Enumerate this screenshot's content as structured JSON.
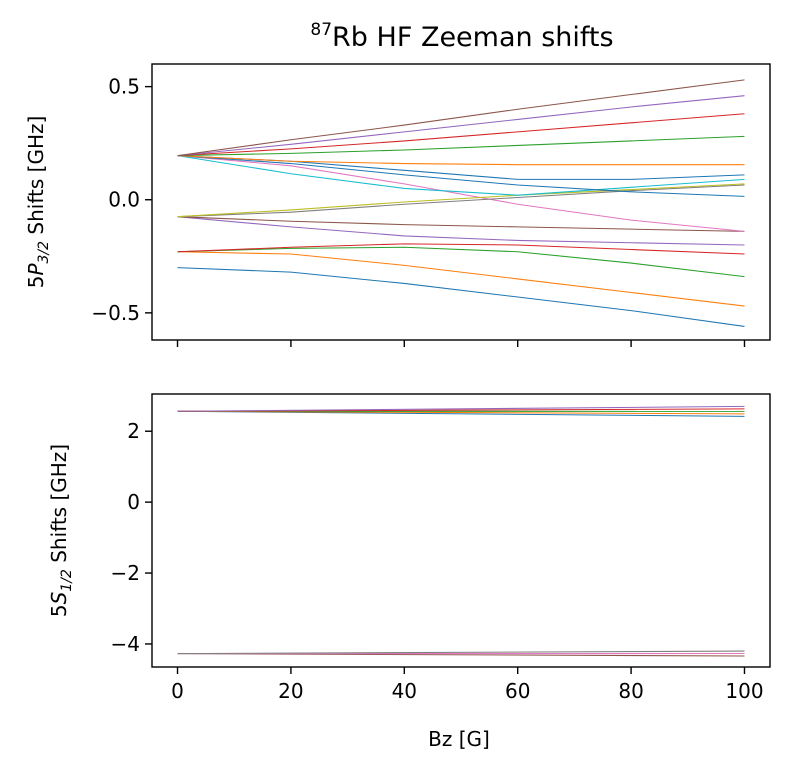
{
  "figure": {
    "title_sup": "87",
    "title_main": "Rb HF Zeeman shifts"
  },
  "chart_data": [
    {
      "type": "line",
      "panel": "top",
      "ylabel_prefix": "5",
      "ylabel_symbol": "P",
      "ylabel_sub": "3/2",
      "ylabel_suffix": " Shifts [GHz]",
      "xlabel": "",
      "xlim": [
        -4.5,
        104.5
      ],
      "ylim": [
        -0.62,
        0.6
      ],
      "yticks": [
        0.5,
        0.0,
        -0.5
      ],
      "ytick_labels": [
        "0.5",
        "0.0",
        "−0.5"
      ],
      "xticks": [
        0,
        20,
        40,
        60,
        80,
        100
      ],
      "xtick_labels": [
        "",
        "",
        "",
        "",
        "",
        ""
      ],
      "x": [
        0,
        20,
        40,
        60,
        80,
        100
      ],
      "series": [
        {
          "color": "#1f77b4",
          "values": [
            -0.3,
            -0.32,
            -0.37,
            -0.43,
            -0.49,
            -0.56
          ]
        },
        {
          "color": "#ff7f0e",
          "values": [
            -0.23,
            -0.24,
            -0.29,
            -0.35,
            -0.41,
            -0.47
          ]
        },
        {
          "color": "#2ca02c",
          "values": [
            -0.23,
            -0.215,
            -0.21,
            -0.23,
            -0.28,
            -0.34
          ]
        },
        {
          "color": "#d62728",
          "values": [
            -0.23,
            -0.21,
            -0.195,
            -0.2,
            -0.22,
            -0.24
          ]
        },
        {
          "color": "#9467bd",
          "values": [
            -0.075,
            -0.12,
            -0.16,
            -0.18,
            -0.19,
            -0.2
          ]
        },
        {
          "color": "#8c564b",
          "values": [
            -0.075,
            -0.095,
            -0.11,
            -0.12,
            -0.13,
            -0.14
          ]
        },
        {
          "color": "#e377c2",
          "values": [
            0.195,
            0.15,
            0.07,
            -0.02,
            -0.09,
            -0.14
          ]
        },
        {
          "color": "#7f7f7f",
          "values": [
            -0.075,
            -0.055,
            -0.02,
            0.01,
            0.04,
            0.065
          ]
        },
        {
          "color": "#bcbd22",
          "values": [
            -0.075,
            -0.045,
            -0.01,
            0.02,
            0.045,
            0.07
          ]
        },
        {
          "color": "#17becf",
          "values": [
            0.195,
            0.115,
            0.05,
            0.02,
            0.055,
            0.09
          ]
        },
        {
          "color": "#1f77b4",
          "values": [
            0.195,
            0.16,
            0.11,
            0.065,
            0.035,
            0.015
          ]
        },
        {
          "color": "#1f77b4",
          "values": [
            0.195,
            0.17,
            0.13,
            0.09,
            0.09,
            0.11
          ]
        },
        {
          "color": "#ff7f0e",
          "values": [
            0.195,
            0.17,
            0.16,
            0.155,
            0.155,
            0.155
          ]
        },
        {
          "color": "#2ca02c",
          "values": [
            0.195,
            0.205,
            0.22,
            0.24,
            0.26,
            0.28
          ]
        },
        {
          "color": "#d62728",
          "values": [
            0.195,
            0.225,
            0.26,
            0.3,
            0.34,
            0.38
          ]
        },
        {
          "color": "#9467bd",
          "values": [
            0.195,
            0.245,
            0.3,
            0.355,
            0.41,
            0.46
          ]
        },
        {
          "color": "#8c564b",
          "values": [
            0.195,
            0.265,
            0.33,
            0.4,
            0.465,
            0.53
          ]
        }
      ]
    },
    {
      "type": "line",
      "panel": "bottom",
      "ylabel_prefix": "5",
      "ylabel_symbol": "S",
      "ylabel_sub": "1/2",
      "ylabel_suffix": " Shifts [GHz]",
      "xlabel": "Bz [G]",
      "xlim": [
        -4.5,
        104.5
      ],
      "ylim": [
        -4.65,
        3.05
      ],
      "yticks": [
        2,
        0,
        -2,
        -4
      ],
      "ytick_labels": [
        "2",
        "0",
        "−2",
        "−4"
      ],
      "xticks": [
        0,
        20,
        40,
        60,
        80,
        100
      ],
      "xtick_labels": [
        "0",
        "20",
        "40",
        "60",
        "80",
        "100"
      ],
      "x": [
        0,
        100
      ],
      "series": [
        {
          "color": "#1f77b4",
          "values": [
            2.563,
            2.42
          ]
        },
        {
          "color": "#ff7f0e",
          "values": [
            2.563,
            2.49
          ]
        },
        {
          "color": "#2ca02c",
          "values": [
            2.563,
            2.56
          ]
        },
        {
          "color": "#d62728",
          "values": [
            2.563,
            2.63
          ]
        },
        {
          "color": "#9467bd",
          "values": [
            2.563,
            2.7
          ]
        },
        {
          "color": "#8c564b",
          "values": [
            -4.272,
            -4.34
          ]
        },
        {
          "color": "#e377c2",
          "values": [
            -4.272,
            -4.27
          ]
        },
        {
          "color": "#7f7f7f",
          "values": [
            -4.272,
            -4.2
          ]
        }
      ]
    }
  ]
}
